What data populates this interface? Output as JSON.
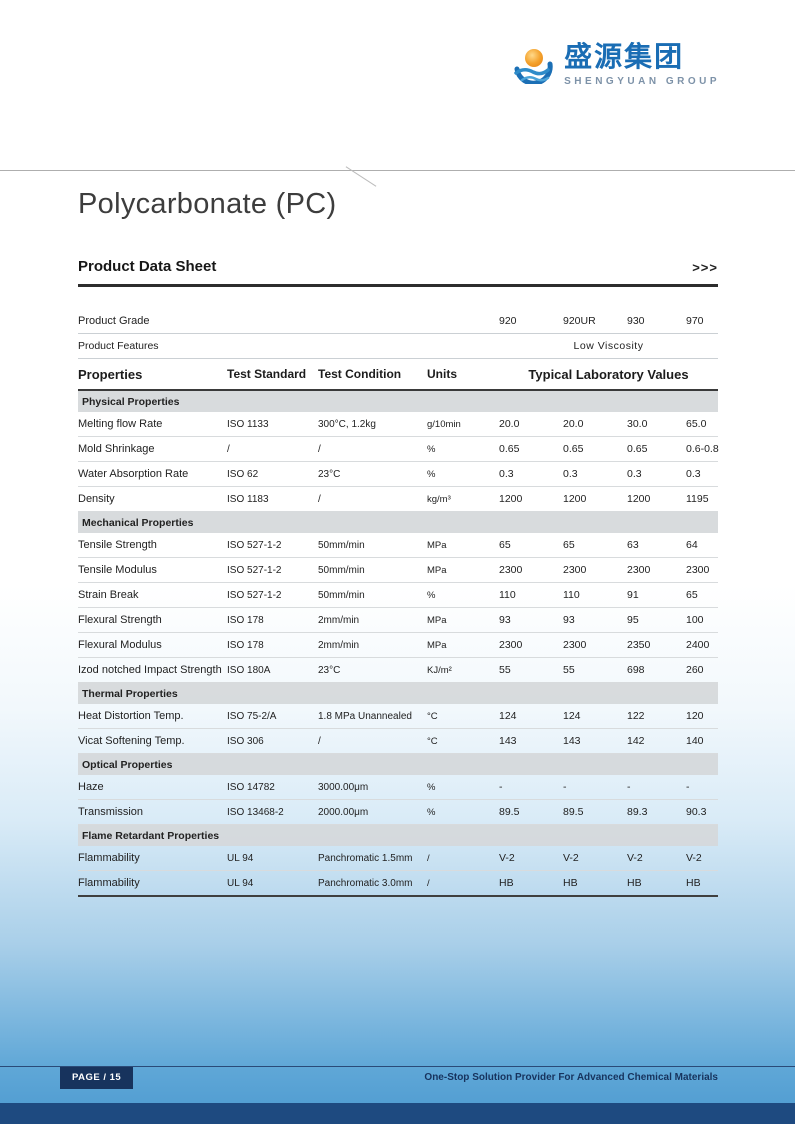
{
  "logo": {
    "chinese": "盛源集团",
    "english": "SHENGYUAN GROUP"
  },
  "page": {
    "title": "Polycarbonate (PC)",
    "subtitle": "Product Data Sheet",
    "arrows": ">>>"
  },
  "table": {
    "grade_label": "Product Grade",
    "grades": [
      "920",
      "920UR",
      "930",
      "970"
    ],
    "features_label": "Product Features",
    "features_value": "Low Viscosity",
    "headers": {
      "properties": "Properties",
      "test_standard": "Test Standard",
      "test_condition": "Test Condition",
      "units": "Units",
      "values": "Typical Laboratory Values"
    },
    "sections": [
      {
        "name": "Physical Properties",
        "rows": [
          {
            "property": "Melting flow Rate",
            "standard": "ISO 1133",
            "condition": "300°C, 1.2kg",
            "units": "g/10min",
            "values": [
              "20.0",
              "20.0",
              "30.0",
              "65.0"
            ]
          },
          {
            "property": "Mold Shrinkage",
            "standard": "/",
            "condition": "/",
            "units": "%",
            "values": [
              "0.65",
              "0.65",
              "0.65",
              "0.6-0.8"
            ]
          },
          {
            "property": "Water Absorption Rate",
            "standard": "ISO 62",
            "condition": "23°C",
            "units": "%",
            "values": [
              "0.3",
              "0.3",
              "0.3",
              "0.3"
            ]
          },
          {
            "property": "Density",
            "standard": "ISO 1183",
            "condition": "/",
            "units": "kg/m³",
            "values": [
              "1200",
              "1200",
              "1200",
              "1195"
            ]
          }
        ]
      },
      {
        "name": "Mechanical Properties",
        "rows": [
          {
            "property": "Tensile Strength",
            "standard": "ISO 527-1-2",
            "condition": "50mm/min",
            "units": "MPa",
            "values": [
              "65",
              "65",
              "63",
              "64"
            ]
          },
          {
            "property": "Tensile Modulus",
            "standard": "ISO 527-1-2",
            "condition": "50mm/min",
            "units": "MPa",
            "values": [
              "2300",
              "2300",
              "2300",
              "2300"
            ]
          },
          {
            "property": "Strain Break",
            "standard": "ISO 527-1-2",
            "condition": "50mm/min",
            "units": "%",
            "values": [
              "110",
              "110",
              "91",
              "65"
            ]
          },
          {
            "property": "Flexural Strength",
            "standard": "ISO 178",
            "condition": "2mm/min",
            "units": "MPa",
            "values": [
              "93",
              "93",
              "95",
              "100"
            ]
          },
          {
            "property": "Flexural Modulus",
            "standard": "ISO 178",
            "condition": "2mm/min",
            "units": "MPa",
            "values": [
              "2300",
              "2300",
              "2350",
              "2400"
            ]
          },
          {
            "property": "Izod notched Impact Strength",
            "standard": "ISO 180A",
            "condition": "23°C",
            "units": "KJ/m²",
            "values": [
              "55",
              "55",
              "698",
              "260"
            ]
          }
        ]
      },
      {
        "name": "Thermal Properties",
        "rows": [
          {
            "property": "Heat Distortion Temp.",
            "standard": "ISO 75-2/A",
            "condition": "1.8 MPa Unannealed",
            "units": "°C",
            "values": [
              "124",
              "124",
              "122",
              "120"
            ]
          },
          {
            "property": "Vicat Softening Temp.",
            "standard": "ISO 306",
            "condition": "/",
            "units": "°C",
            "values": [
              "143",
              "143",
              "142",
              "140"
            ]
          }
        ]
      },
      {
        "name": "Optical Properties",
        "rows": [
          {
            "property": "Haze",
            "standard": "ISO 14782",
            "condition": "3000.00μm",
            "units": "%",
            "values": [
              "-",
              "-",
              "-",
              "-"
            ]
          },
          {
            "property": "Transmission",
            "standard": "ISO 13468-2",
            "condition": "2000.00μm",
            "units": "%",
            "values": [
              "89.5",
              "89.5",
              "89.3",
              "90.3"
            ]
          }
        ]
      },
      {
        "name": "Flame Retardant Properties",
        "rows": [
          {
            "property": "Flammability",
            "standard": "UL 94",
            "condition": "Panchromatic 1.5mm",
            "units": "/",
            "values": [
              "V-2",
              "V-2",
              "V-2",
              "V-2"
            ]
          },
          {
            "property": "Flammability",
            "standard": "UL 94",
            "condition": "Panchromatic 3.0mm",
            "units": "/",
            "values": [
              "HB",
              "HB",
              "HB",
              "HB"
            ]
          }
        ]
      }
    ]
  },
  "footer": {
    "page_label": "PAGE / 15",
    "tagline": "One-Stop Solution Provider For Advanced Chemical Materials"
  },
  "colors": {
    "accent_blue": "#1a6db4",
    "footer_navy": "#17335d",
    "bottom_bar_blue": "#1e4a80",
    "section_band_gray": "#d5d8da"
  }
}
